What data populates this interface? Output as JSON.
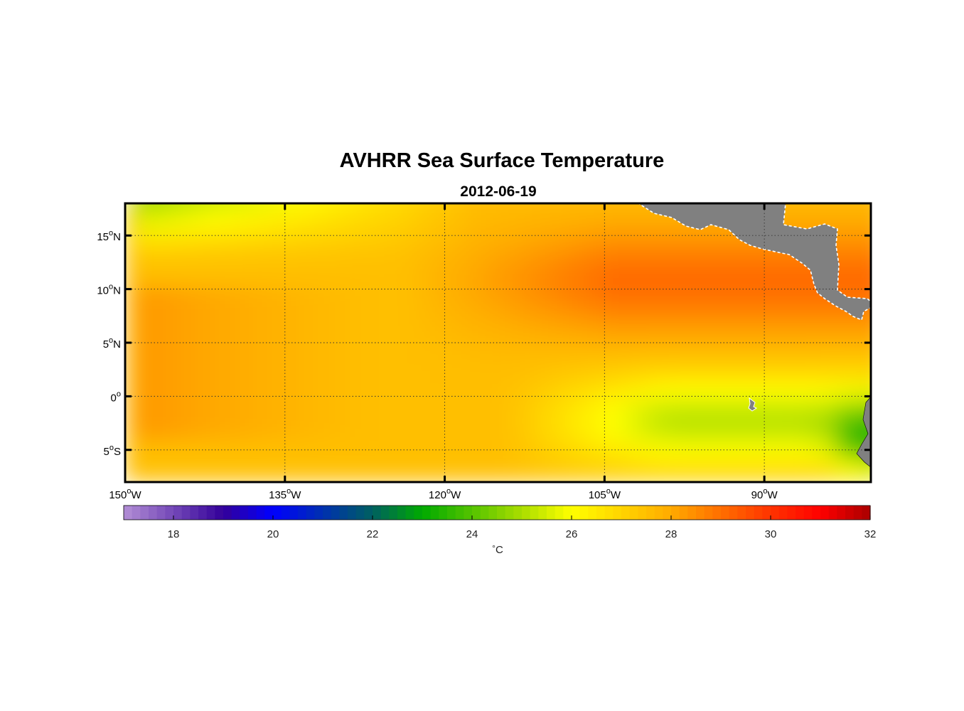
{
  "title": "AVHRR Sea Surface Temperature",
  "subtitle": "2012-06-19",
  "map": {
    "lon_range": [
      -150,
      -80
    ],
    "lat_range": [
      -8,
      18
    ],
    "lon_ticks": [
      {
        "value": -150,
        "deg": "150",
        "dir": "W"
      },
      {
        "value": -135,
        "deg": "135",
        "dir": "W"
      },
      {
        "value": -120,
        "deg": "120",
        "dir": "W"
      },
      {
        "value": -105,
        "deg": "105",
        "dir": "W"
      },
      {
        "value": -90,
        "deg": "90",
        "dir": "W"
      }
    ],
    "lat_ticks": [
      {
        "value": 15,
        "deg": "15",
        "dir": "N"
      },
      {
        "value": 10,
        "deg": "10",
        "dir": "N"
      },
      {
        "value": 5,
        "deg": "5",
        "dir": "N"
      },
      {
        "value": 0,
        "deg": "0",
        "dir": ""
      },
      {
        "value": -5,
        "deg": "5",
        "dir": "S"
      }
    ],
    "grid": "dotted",
    "land_color": "#808080",
    "features": [
      "Central America",
      "South America coast",
      "Galapagos Islands"
    ]
  },
  "colorbar": {
    "min": 17,
    "max": 32,
    "ticks": [
      18,
      20,
      22,
      24,
      26,
      28,
      30,
      32
    ],
    "unit_deg": "°",
    "unit": "C",
    "stops": [
      {
        "v": 17,
        "c": "#b38fd6"
      },
      {
        "v": 19,
        "c": "#330099"
      },
      {
        "v": 20,
        "c": "#0000ff"
      },
      {
        "v": 22,
        "c": "#006060"
      },
      {
        "v": 23,
        "c": "#00aa00"
      },
      {
        "v": 25,
        "c": "#aadd00"
      },
      {
        "v": 26,
        "c": "#ffff00"
      },
      {
        "v": 28,
        "c": "#ffaa00"
      },
      {
        "v": 30,
        "c": "#ff3300"
      },
      {
        "v": 31,
        "c": "#ff0000"
      },
      {
        "v": 32,
        "c": "#aa0000"
      }
    ]
  }
}
